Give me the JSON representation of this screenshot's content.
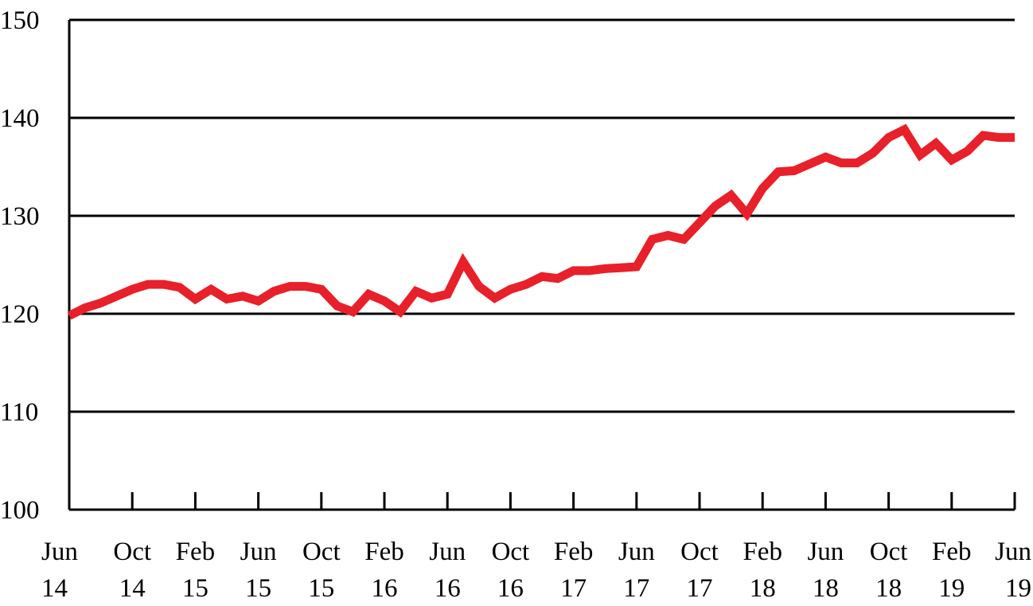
{
  "chart_data": {
    "type": "line",
    "title": "",
    "xlabel": "",
    "ylabel": "",
    "ylim": [
      100,
      150
    ],
    "y_ticks": [
      "100",
      "110",
      "120",
      "130",
      "140",
      "150"
    ],
    "x_ticks": [
      {
        "month": "Jun",
        "year": "14"
      },
      {
        "month": "Oct",
        "year": "14"
      },
      {
        "month": "Feb",
        "year": "15"
      },
      {
        "month": "Jun",
        "year": "15"
      },
      {
        "month": "Oct",
        "year": "15"
      },
      {
        "month": "Feb",
        "year": "16"
      },
      {
        "month": "Jun",
        "year": "16"
      },
      {
        "month": "Oct",
        "year": "16"
      },
      {
        "month": "Feb",
        "year": "17"
      },
      {
        "month": "Jun",
        "year": "17"
      },
      {
        "month": "Oct",
        "year": "17"
      },
      {
        "month": "Feb",
        "year": "18"
      },
      {
        "month": "Jun",
        "year": "18"
      },
      {
        "month": "Oct",
        "year": "18"
      },
      {
        "month": "Feb",
        "year": "19"
      },
      {
        "month": "Jun",
        "year": "19"
      }
    ],
    "grid": true,
    "x_start": "2014-06",
    "x_end": "2019-06",
    "series": [
      {
        "color": "#e8202a",
        "x": [
          "2014-06",
          "2014-07",
          "2014-08",
          "2014-09",
          "2014-10",
          "2014-11",
          "2014-12",
          "2015-01",
          "2015-02",
          "2015-03",
          "2015-04",
          "2015-05",
          "2015-06",
          "2015-07",
          "2015-08",
          "2015-09",
          "2015-10",
          "2015-11",
          "2015-12",
          "2016-01",
          "2016-02",
          "2016-03",
          "2016-04",
          "2016-05",
          "2016-06",
          "2016-07",
          "2016-08",
          "2016-09",
          "2016-10",
          "2016-11",
          "2016-12",
          "2017-01",
          "2017-02",
          "2017-03",
          "2017-04",
          "2017-05",
          "2017-06",
          "2017-07",
          "2017-08",
          "2017-09",
          "2017-10",
          "2017-11",
          "2017-12",
          "2018-01",
          "2018-02",
          "2018-03",
          "2018-04",
          "2018-05",
          "2018-06",
          "2018-07",
          "2018-08",
          "2018-09",
          "2018-10",
          "2018-11",
          "2018-12",
          "2019-01",
          "2019-02",
          "2019-03",
          "2019-04",
          "2019-05",
          "2019-06"
        ],
        "values": [
          119.8,
          120.6,
          121.1,
          121.8,
          122.5,
          123.0,
          123.0,
          122.7,
          121.5,
          122.5,
          121.5,
          121.8,
          121.3,
          122.3,
          122.8,
          122.8,
          122.5,
          120.8,
          120.2,
          122.0,
          121.3,
          120.2,
          122.3,
          121.6,
          122.0,
          125.3,
          122.8,
          121.6,
          122.5,
          123.0,
          123.8,
          123.6,
          124.4,
          124.4,
          124.6,
          124.7,
          124.8,
          127.6,
          128.0,
          127.6,
          129.3,
          131.0,
          132.1,
          130.2,
          132.8,
          134.5,
          134.6,
          135.3,
          136.0,
          135.4,
          135.4,
          136.4,
          138.0,
          138.8,
          136.2,
          137.4,
          135.7,
          136.6,
          138.2,
          138.0,
          138.0
        ]
      }
    ]
  }
}
